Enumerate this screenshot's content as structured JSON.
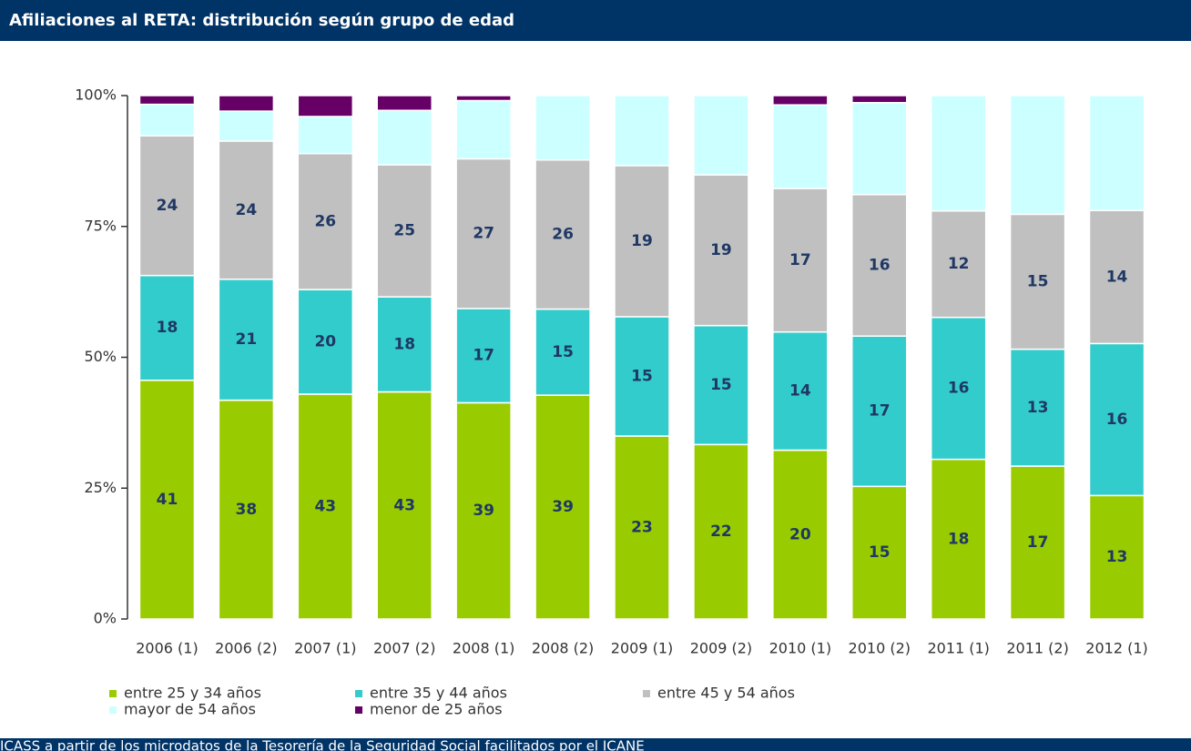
{
  "chart_data": {
    "type": "bar",
    "stacking": "percent",
    "title": "Afiliaciones al RETA: distribución según grupo de edad",
    "source": "ICASS a partir de los microdatos de la Tesorería de la Seguridad Social facilitados por el ICANE",
    "categories": [
      "2006 (1)",
      "2006 (2)",
      "2007 (1)",
      "2007 (2)",
      "2008 (1)",
      "2008 (2)",
      "2009 (1)",
      "2009 (2)",
      "2010 (1)",
      "2010 (2)",
      "2011 (1)",
      "2011 (2)",
      "2012 (1)"
    ],
    "series": [
      {
        "name": "entre 25 y 34 años",
        "color": "#99cc00",
        "data_labels": true,
        "values": [
          41,
          38,
          43,
          43,
          39,
          39,
          23,
          22,
          20,
          15,
          18,
          17,
          13
        ]
      },
      {
        "name": "entre 35 y 44 años",
        "color": "#33cccc",
        "data_labels": true,
        "values": [
          18,
          21,
          20,
          18,
          17,
          15,
          15,
          15,
          14,
          17,
          16,
          13,
          16
        ]
      },
      {
        "name": "entre 45 y 54 años",
        "color": "#c0c0c0",
        "data_labels": true,
        "values": [
          24,
          24,
          26,
          25,
          27,
          26,
          19,
          19,
          17,
          16,
          12,
          15,
          14
        ]
      },
      {
        "name": "mayor de 54 años",
        "color": "#ccffff",
        "data_labels": false,
        "values": [
          5.4,
          5.2,
          7.1,
          10.3,
          10.5,
          11.2,
          8.8,
          10.0,
          9.9,
          10.4,
          13.0,
          13.2,
          12.1
        ]
      },
      {
        "name": "menor de 25 años",
        "color": "#660066",
        "data_labels": false,
        "values": [
          1.5,
          2.7,
          4.0,
          2.8,
          0.9,
          0,
          0,
          0,
          1.1,
          0.8,
          0,
          0,
          0
        ]
      }
    ],
    "ylim": [
      0,
      100
    ],
    "yticks": [
      {
        "value": 0,
        "label": "0%"
      },
      {
        "value": 25,
        "label": "25%"
      },
      {
        "value": 50,
        "label": "50%"
      },
      {
        "value": 75,
        "label": "75%"
      },
      {
        "value": 100,
        "label": "100%"
      }
    ],
    "grid": false,
    "legend": "bottom"
  }
}
